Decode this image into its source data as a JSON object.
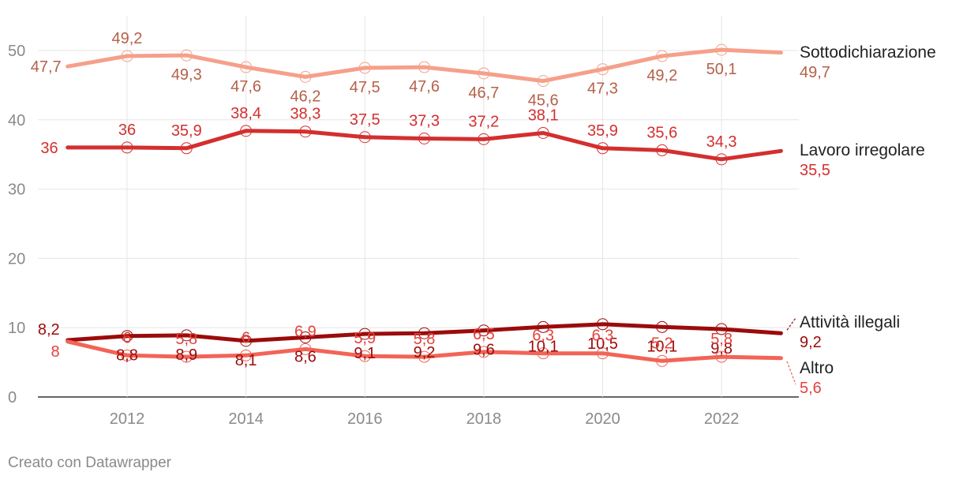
{
  "chart_data": {
    "type": "line",
    "title": "",
    "xlabel": "",
    "ylabel": "",
    "x": [
      2011,
      2012,
      2013,
      2014,
      2015,
      2016,
      2017,
      2018,
      2019,
      2020,
      2021,
      2022,
      2023
    ],
    "x_ticks": [
      2012,
      2014,
      2016,
      2018,
      2020,
      2022
    ],
    "y_ticks": [
      0,
      10,
      20,
      30,
      40,
      50
    ],
    "ylim": [
      0,
      55
    ],
    "xlim": [
      2010.5,
      2023.3
    ],
    "grid": true,
    "series": [
      {
        "name": "Sottodichiarazione",
        "color": "#f5a08a",
        "label_color": "#b5604a",
        "values": [
          47.7,
          49.2,
          49.3,
          47.6,
          46.2,
          47.5,
          47.6,
          46.7,
          45.6,
          47.3,
          49.2,
          50.1,
          49.7
        ],
        "labels": [
          "47,7",
          "49,2",
          "49,3",
          "47,6",
          "46,2",
          "47,5",
          "47,6",
          "46,7",
          "45,6",
          "47,3",
          "49,2",
          "50,1",
          "49,7"
        ]
      },
      {
        "name": "Lavoro irregolare",
        "color": "#d32f2f",
        "label_color": "#d32f2f",
        "values": [
          36,
          36,
          35.9,
          38.4,
          38.3,
          37.5,
          37.3,
          37.2,
          38.1,
          35.9,
          35.6,
          34.3,
          35.5
        ],
        "labels": [
          "36",
          "36",
          "35,9",
          "38,4",
          "38,3",
          "37,5",
          "37,3",
          "37,2",
          "38,1",
          "35,9",
          "35,6",
          "34,3",
          "35,5"
        ]
      },
      {
        "name": "Attività illegali",
        "color": "#9b0b0b",
        "label_color": "#9b0b0b",
        "values": [
          8.2,
          8.8,
          8.9,
          8.1,
          8.6,
          9.1,
          9.2,
          9.6,
          10.1,
          10.5,
          10.1,
          9.8,
          9.2
        ],
        "labels": [
          "8,2",
          "8,8",
          "8,9",
          "8,1",
          "8,6",
          "9,1",
          "9,2",
          "9,6",
          "10,1",
          "10,5",
          "10,1",
          "9,8",
          "9,2"
        ]
      },
      {
        "name": "Altro",
        "color": "#f26457",
        "label_color": "#e3423a",
        "values": [
          8,
          6,
          5.8,
          6,
          6.9,
          5.9,
          5.8,
          6.5,
          6.3,
          6.3,
          5.2,
          5.8,
          5.6
        ],
        "labels": [
          "8",
          "6",
          "5,8",
          "6",
          "6,9",
          "5,9",
          "5,8",
          "6,5",
          "6,3",
          "6,3",
          "5,2",
          "5,8",
          "5,6"
        ]
      }
    ]
  },
  "footer": "Creato con Datawrapper"
}
